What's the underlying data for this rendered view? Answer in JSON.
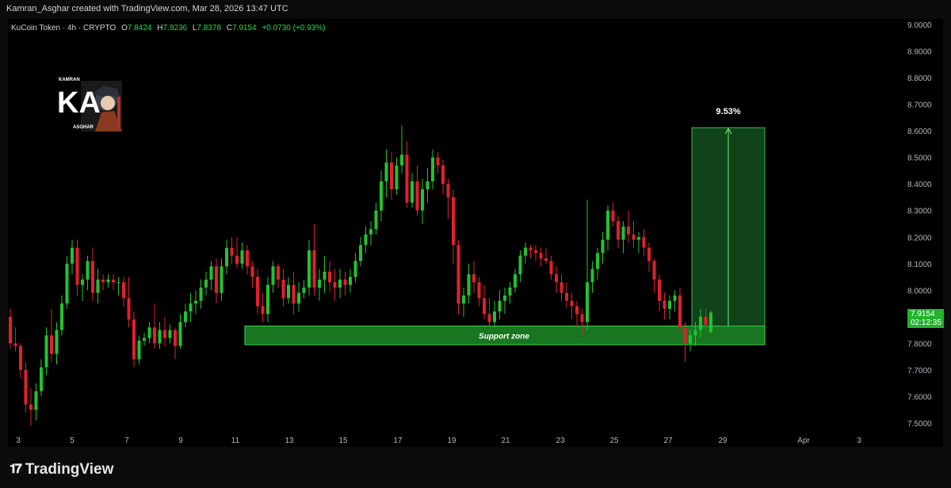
{
  "header": {
    "credit": "Kamran_Asghar created with TradingView.com, Mar 28, 2026 13:47 UTC"
  },
  "symbol": {
    "name": "KuCoin Token",
    "interval": "4h",
    "exchange": "CRYPTO",
    "open_label": "O",
    "open": "7.8424",
    "high_label": "H",
    "high": "7.9236",
    "low_label": "L",
    "low": "7.8378",
    "close_label": "C",
    "close": "7.9154",
    "change": "+0.0730 (+0.93%)"
  },
  "price_tag": {
    "price": "7.9154",
    "countdown": "02:12:35"
  },
  "footer": {
    "brand": "TradingView"
  },
  "logo": {
    "text_top": "KAMRAN",
    "text_mid": "KA",
    "text_bottom": "ASGHAR"
  },
  "colors": {
    "up": "#22c32e",
    "down": "#e0202f",
    "zone": "#1f9e2a",
    "target": "#1f7a2f",
    "background": "#000000"
  },
  "chart_data": {
    "type": "candlestick",
    "y_ticks": [
      "9.0000",
      "8.9000",
      "8.8000",
      "8.7000",
      "8.6000",
      "8.5000",
      "8.4000",
      "8.3000",
      "8.2000",
      "8.1000",
      "8.0000",
      "7.9000",
      "7.8000",
      "7.7000",
      "7.6000",
      "7.5000"
    ],
    "x_ticks": [
      "3",
      "5",
      "7",
      "9",
      "11",
      "13",
      "15",
      "17",
      "19",
      "21",
      "23",
      "25",
      "27",
      "29",
      "Apr",
      "3"
    ],
    "ylim": [
      7.47,
      9.03
    ],
    "annotations": {
      "support_zone": {
        "label": "Support zone",
        "low": 7.795,
        "high": 7.865
      },
      "target": {
        "label": "9.53%",
        "low": 7.865,
        "high": 8.612
      }
    },
    "candles": [
      [
        7.9,
        7.93,
        7.78,
        7.8
      ],
      [
        7.8,
        7.86,
        7.77,
        7.79
      ],
      [
        7.79,
        7.8,
        7.67,
        7.7
      ],
      [
        7.7,
        7.73,
        7.54,
        7.57
      ],
      [
        7.57,
        7.63,
        7.49,
        7.55
      ],
      [
        7.55,
        7.65,
        7.51,
        7.62
      ],
      [
        7.62,
        7.74,
        7.6,
        7.71
      ],
      [
        7.71,
        7.86,
        7.68,
        7.83
      ],
      [
        7.83,
        7.93,
        7.73,
        7.76
      ],
      [
        7.76,
        7.88,
        7.72,
        7.85
      ],
      [
        7.85,
        7.98,
        7.83,
        7.95
      ],
      [
        7.95,
        8.13,
        7.93,
        8.1
      ],
      [
        8.1,
        8.19,
        8.06,
        8.16
      ],
      [
        8.16,
        8.19,
        7.98,
        8.02
      ],
      [
        8.02,
        8.06,
        7.96,
        8.04
      ],
      [
        8.04,
        8.13,
        8.0,
        8.11
      ],
      [
        8.11,
        8.16,
        7.96,
        7.99
      ],
      [
        7.99,
        8.08,
        7.95,
        8.04
      ],
      [
        8.04,
        8.06,
        8.0,
        8.03
      ],
      [
        8.03,
        8.06,
        8.01,
        8.04
      ],
      [
        8.04,
        8.06,
        8.0,
        8.03
      ],
      [
        8.03,
        8.05,
        7.98,
        8.03
      ],
      [
        8.03,
        8.05,
        7.94,
        7.97
      ],
      [
        7.97,
        8.05,
        7.86,
        7.89
      ],
      [
        7.89,
        7.92,
        7.71,
        7.74
      ],
      [
        7.74,
        7.83,
        7.72,
        7.81
      ],
      [
        7.81,
        7.84,
        7.79,
        7.82
      ],
      [
        7.82,
        7.88,
        7.8,
        7.86
      ],
      [
        7.86,
        7.95,
        7.78,
        7.8
      ],
      [
        7.8,
        7.88,
        7.78,
        7.85
      ],
      [
        7.85,
        7.9,
        7.79,
        7.82
      ],
      [
        7.82,
        7.87,
        7.8,
        7.85
      ],
      [
        7.85,
        7.86,
        7.74,
        7.79
      ],
      [
        7.79,
        7.91,
        7.78,
        7.88
      ],
      [
        7.88,
        7.95,
        7.86,
        7.92
      ],
      [
        7.92,
        7.99,
        7.88,
        7.95
      ],
      [
        7.95,
        8.0,
        7.91,
        7.96
      ],
      [
        7.96,
        8.04,
        7.93,
        8.01
      ],
      [
        8.01,
        8.07,
        7.98,
        8.04
      ],
      [
        8.04,
        8.11,
        8.0,
        8.09
      ],
      [
        8.09,
        8.12,
        7.95,
        7.99
      ],
      [
        7.99,
        8.12,
        7.96,
        8.09
      ],
      [
        8.09,
        8.19,
        8.06,
        8.16
      ],
      [
        8.16,
        8.2,
        8.1,
        8.13
      ],
      [
        8.13,
        8.2,
        8.08,
        8.1
      ],
      [
        8.1,
        8.18,
        8.08,
        8.15
      ],
      [
        8.15,
        8.17,
        8.06,
        8.09
      ],
      [
        8.09,
        8.11,
        8.01,
        8.05
      ],
      [
        8.05,
        8.08,
        7.91,
        7.94
      ],
      [
        7.94,
        7.99,
        7.88,
        7.91
      ],
      [
        7.91,
        8.05,
        7.88,
        8.02
      ],
      [
        8.02,
        8.11,
        7.99,
        8.09
      ],
      [
        8.09,
        8.1,
        8.01,
        8.04
      ],
      [
        8.04,
        8.08,
        7.94,
        7.97
      ],
      [
        7.97,
        8.05,
        7.95,
        8.02
      ],
      [
        8.02,
        8.07,
        7.91,
        7.95
      ],
      [
        7.95,
        8.03,
        7.92,
        7.99
      ],
      [
        7.99,
        8.04,
        7.97,
        8.01
      ],
      [
        8.01,
        8.19,
        7.98,
        8.15
      ],
      [
        8.15,
        8.25,
        7.98,
        8.01
      ],
      [
        8.01,
        8.08,
        7.96,
        8.04
      ],
      [
        8.04,
        8.13,
        7.99,
        8.07
      ],
      [
        8.07,
        8.11,
        7.99,
        8.03
      ],
      [
        8.03,
        8.08,
        7.96,
        8.01
      ],
      [
        8.01,
        8.08,
        7.97,
        8.04
      ],
      [
        8.04,
        8.07,
        7.98,
        8.02
      ],
      [
        8.02,
        8.08,
        7.99,
        8.05
      ],
      [
        8.05,
        8.14,
        8.03,
        8.11
      ],
      [
        8.11,
        8.2,
        8.09,
        8.17
      ],
      [
        8.17,
        8.24,
        8.14,
        8.21
      ],
      [
        8.21,
        8.26,
        8.17,
        8.23
      ],
      [
        8.23,
        8.33,
        8.21,
        8.3
      ],
      [
        8.3,
        8.45,
        8.26,
        8.41
      ],
      [
        8.41,
        8.53,
        8.35,
        8.48
      ],
      [
        8.48,
        8.52,
        8.34,
        8.38
      ],
      [
        8.38,
        8.5,
        8.36,
        8.47
      ],
      [
        8.47,
        8.62,
        8.44,
        8.51
      ],
      [
        8.51,
        8.56,
        8.31,
        8.33
      ],
      [
        8.33,
        8.44,
        8.31,
        8.41
      ],
      [
        8.41,
        8.47,
        8.28,
        8.3
      ],
      [
        8.3,
        8.42,
        8.25,
        8.38
      ],
      [
        8.38,
        8.46,
        8.33,
        8.41
      ],
      [
        8.41,
        8.53,
        8.38,
        8.5
      ],
      [
        8.5,
        8.52,
        8.44,
        8.47
      ],
      [
        8.47,
        8.49,
        8.36,
        8.4
      ],
      [
        8.4,
        8.42,
        8.27,
        8.35
      ],
      [
        8.35,
        8.38,
        8.1,
        8.17
      ],
      [
        8.17,
        8.19,
        7.91,
        7.95
      ],
      [
        7.95,
        8.01,
        7.9,
        7.98
      ],
      [
        7.98,
        8.1,
        7.95,
        8.06
      ],
      [
        8.06,
        8.11,
        7.99,
        8.03
      ],
      [
        8.03,
        8.05,
        7.94,
        7.97
      ],
      [
        7.97,
        8.02,
        7.89,
        7.91
      ],
      [
        7.91,
        7.97,
        7.86,
        7.88
      ],
      [
        7.88,
        7.96,
        7.86,
        7.92
      ],
      [
        7.92,
        8.0,
        7.89,
        7.96
      ],
      [
        7.96,
        8.01,
        7.91,
        7.98
      ],
      [
        7.98,
        8.03,
        7.95,
        8.01
      ],
      [
        8.01,
        8.08,
        7.99,
        8.06
      ],
      [
        8.06,
        8.15,
        8.03,
        8.13
      ],
      [
        8.13,
        8.18,
        8.1,
        8.16
      ],
      [
        8.16,
        8.17,
        8.12,
        8.15
      ],
      [
        8.15,
        8.17,
        8.11,
        8.14
      ],
      [
        8.14,
        8.16,
        8.09,
        8.12
      ],
      [
        8.12,
        8.16,
        8.1,
        8.11
      ],
      [
        8.11,
        8.13,
        8.04,
        8.06
      ],
      [
        8.06,
        8.09,
        7.99,
        8.03
      ],
      [
        8.03,
        8.06,
        7.96,
        7.99
      ],
      [
        7.99,
        8.03,
        7.93,
        7.96
      ],
      [
        7.96,
        7.99,
        7.89,
        7.94
      ],
      [
        7.94,
        7.96,
        7.86,
        7.91
      ],
      [
        7.91,
        7.93,
        7.83,
        7.88
      ],
      [
        7.88,
        8.34,
        7.85,
        8.03
      ],
      [
        8.03,
        8.11,
        7.99,
        8.08
      ],
      [
        8.08,
        8.16,
        8.04,
        8.14
      ],
      [
        8.14,
        8.22,
        8.1,
        8.19
      ],
      [
        8.19,
        8.32,
        8.15,
        8.3
      ],
      [
        8.3,
        8.33,
        8.24,
        8.26
      ],
      [
        8.26,
        8.28,
        8.16,
        8.19
      ],
      [
        8.19,
        8.26,
        8.14,
        8.24
      ],
      [
        8.24,
        8.3,
        8.18,
        8.21
      ],
      [
        8.21,
        8.26,
        8.16,
        8.19
      ],
      [
        8.19,
        8.22,
        8.14,
        8.2
      ],
      [
        8.2,
        8.23,
        8.13,
        8.16
      ],
      [
        8.16,
        8.18,
        8.07,
        8.11
      ],
      [
        8.11,
        8.12,
        7.99,
        8.04
      ],
      [
        8.04,
        8.06,
        7.92,
        7.96
      ],
      [
        7.96,
        7.99,
        7.89,
        7.93
      ],
      [
        7.93,
        7.98,
        7.89,
        7.96
      ],
      [
        7.96,
        8.0,
        7.92,
        7.98
      ],
      [
        7.98,
        8.01,
        7.84,
        7.86
      ],
      [
        7.86,
        7.88,
        7.73,
        7.8
      ],
      [
        7.8,
        7.85,
        7.77,
        7.83
      ],
      [
        7.83,
        7.88,
        7.79,
        7.85
      ],
      [
        7.85,
        7.93,
        7.82,
        7.9
      ],
      [
        7.9,
        7.93,
        7.84,
        7.87
      ],
      [
        7.8424,
        7.9236,
        7.8378,
        7.9154
      ]
    ]
  }
}
